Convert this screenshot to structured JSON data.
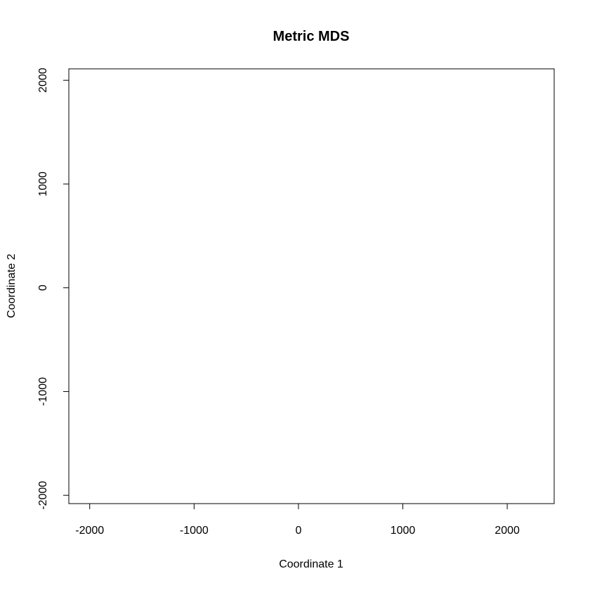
{
  "chart_data": {
    "type": "scatter",
    "title": "Metric MDS",
    "xlabel": "Coordinate 1",
    "ylabel": "Coordinate 2",
    "xlim": [
      -2200,
      2450
    ],
    "ylim": [
      -2080,
      2110
    ],
    "x_ticks": [
      -2000,
      -1000,
      0,
      1000,
      2000
    ],
    "y_ticks": [
      -2000,
      -1000,
      0,
      1000,
      2000
    ],
    "x_tick_labels": [
      "-2000",
      "-1000",
      "0",
      "1000",
      "2000"
    ],
    "y_tick_labels": [
      "-2000",
      "-1000",
      "0",
      "1000",
      "2000"
    ],
    "grid": false,
    "series": [
      {
        "points": []
      }
    ]
  }
}
